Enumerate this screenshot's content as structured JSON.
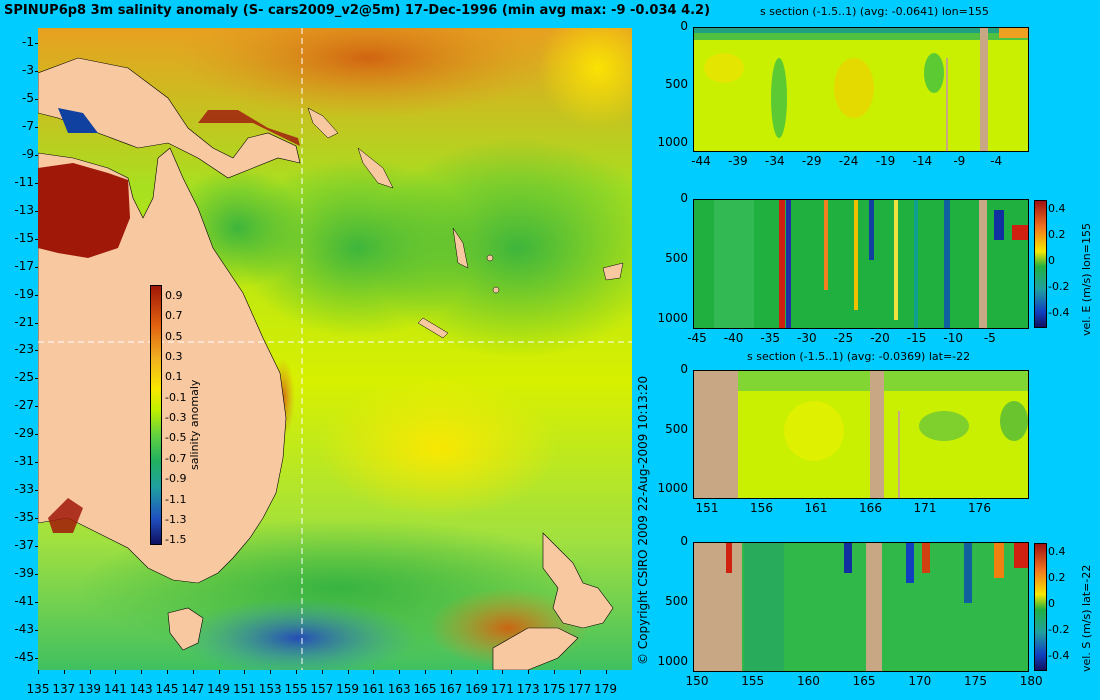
{
  "main_map": {
    "title": "SPINUP6p8 3m salinity anomaly (S- cars2009_v2@5m) 17-Dec-1996 (min avg max: -9 -0.034 4.2)",
    "lat_ticks": [
      "-1",
      "-3",
      "-5",
      "-7",
      "-9",
      "-11",
      "-13",
      "-15",
      "-17",
      "-19",
      "-21",
      "-23",
      "-25",
      "-27",
      "-29",
      "-31",
      "-33",
      "-35",
      "-37",
      "-39",
      "-41",
      "-43",
      "-45"
    ],
    "lon_ticks": [
      "135",
      "137",
      "139",
      "141",
      "143",
      "145",
      "147",
      "149",
      "151",
      "153",
      "155",
      "157",
      "159",
      "161",
      "163",
      "165",
      "167",
      "169",
      "171",
      "173",
      "175",
      "177",
      "179"
    ],
    "colorbar_label": "salinity anomaly",
    "colorbar_ticks": [
      "0.9",
      "0.7",
      "0.5",
      "0.3",
      "0.1",
      "-0.1",
      "-0.3",
      "-0.5",
      "-0.7",
      "-0.9",
      "-1.1",
      "-1.3",
      "-1.5"
    ],
    "section_lon": "155",
    "section_lat": "-22",
    "colors": {
      "land": "#f8c8a0",
      "ocean_base": "#c8f000",
      "background": "#00ccff"
    }
  },
  "copyright": "© Copyright CSIRO 2009   22-Aug-2009 10:13:20",
  "sections": [
    {
      "title": "s section (-1.5..1) (avg: -0.0641) lon=155",
      "y_ticks": [
        "0",
        "500",
        "1000"
      ],
      "x_ticks": [
        "-44",
        "-39",
        "-34",
        "-29",
        "-24",
        "-19",
        "-14",
        "-9",
        "-4"
      ],
      "colorbar_label": ""
    },
    {
      "title": "",
      "y_ticks": [
        "0",
        "500",
        "1000"
      ],
      "x_ticks": [
        "-45",
        "-40",
        "-35",
        "-30",
        "-25",
        "-20",
        "-15",
        "-10",
        "-5"
      ],
      "colorbar_label": "vel. E (m/s) lon=155",
      "colorbar_ticks": [
        "0.4",
        "0.2",
        "0",
        "-0.2",
        "-0.4"
      ]
    },
    {
      "title": "s section (-1.5..1) (avg: -0.0369) lat=-22",
      "y_ticks": [
        "0",
        "500",
        "1000"
      ],
      "x_ticks": [
        "151",
        "156",
        "161",
        "166",
        "171",
        "176"
      ],
      "colorbar_label": ""
    },
    {
      "title": "",
      "y_ticks": [
        "0",
        "500",
        "1000"
      ],
      "x_ticks": [
        "150",
        "155",
        "160",
        "165",
        "170",
        "175",
        "180"
      ],
      "colorbar_label": "vel. S (m/s) lat=-22",
      "colorbar_ticks": [
        "0.4",
        "0.2",
        "0",
        "-0.2",
        "-0.4"
      ]
    }
  ]
}
